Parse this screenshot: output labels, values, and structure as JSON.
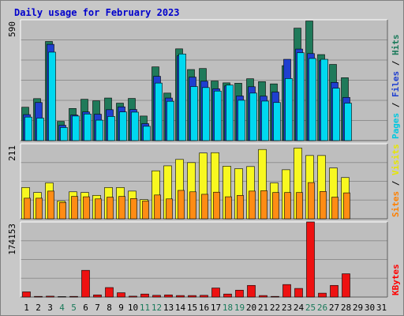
{
  "title": "Daily usage for February 2023",
  "panels": {
    "top": {
      "max_label": "590",
      "legend": [
        {
          "text": "Pages",
          "color": "#00c8e0"
        },
        {
          "text": " / ",
          "color": "#000000"
        },
        {
          "text": "Files",
          "color": "#1f3fd0"
        },
        {
          "text": " / ",
          "color": "#000000"
        },
        {
          "text": "Hits",
          "color": "#1a7a5a"
        }
      ]
    },
    "mid": {
      "max_label": "211",
      "legend": [
        {
          "text": "Sites",
          "color": "#ff8000"
        },
        {
          "text": " / ",
          "color": "#000000"
        },
        {
          "text": "Visits",
          "color": "#e6e600"
        }
      ]
    },
    "bot": {
      "max_label": "174153",
      "legend": [
        {
          "text": "KBytes",
          "color": "#ff0000"
        }
      ]
    }
  },
  "colors": {
    "hits": "#1f7a5a",
    "files": "#1f3fd0",
    "pages": "#00d8f0",
    "visits": "#f8f820",
    "sites": "#ff8c14",
    "kbytes": "#ee1111",
    "weekday": "#000000",
    "weekend": "#1a7a5a",
    "grid": "#909090",
    "panel_bg": "#bebebe"
  },
  "chart_data": {
    "type": "bar",
    "title": "Daily usage for February 2023",
    "categories": [
      "1",
      "2",
      "3",
      "4",
      "5",
      "6",
      "7",
      "8",
      "9",
      "10",
      "11",
      "12",
      "13",
      "14",
      "15",
      "16",
      "17",
      "18",
      "19",
      "20",
      "21",
      "22",
      "23",
      "24",
      "25",
      "26",
      "27",
      "28",
      "29",
      "30",
      "31"
    ],
    "weekend_days": [
      4,
      5,
      11,
      12,
      18,
      19,
      25,
      26
    ],
    "panels": [
      {
        "name": "top",
        "ylim": [
          0,
          590
        ],
        "series": [
          {
            "name": "Hits",
            "values": [
              163,
              205,
              484,
              94,
              157,
              202,
              194,
              208,
              183,
              206,
              120,
              360,
              232,
              448,
              347,
              352,
              291,
              282,
              280,
              302,
              288,
              277,
              366,
              549,
              584,
              420,
              372,
              307,
              0,
              0,
              0
            ]
          },
          {
            "name": "Files",
            "values": [
              127,
              186,
              470,
              75,
              125,
              140,
              129,
              151,
              165,
              152,
              83,
              314,
              208,
              414,
              310,
              290,
              253,
              267,
              218,
              263,
              217,
              237,
              397,
              447,
              425,
              390,
              284,
              211,
              0,
              0,
              0
            ]
          },
          {
            "name": "Pages",
            "values": [
              115,
              110,
              432,
              64,
              120,
              130,
              100,
              118,
              140,
              139,
              70,
              281,
              192,
              423,
              264,
              259,
              242,
              271,
              197,
              232,
              193,
              186,
              303,
              429,
              401,
              397,
              256,
              183,
              0,
              0,
              0
            ]
          }
        ]
      },
      {
        "name": "mid",
        "ylim": [
          0,
          211
        ],
        "series": [
          {
            "name": "Visits",
            "values": [
              88,
              74,
              101,
              50,
              76,
              74,
              66,
              88,
              88,
              78,
              54,
              135,
              149,
              167,
              158,
              185,
              186,
              148,
              141,
              147,
              195,
              101,
              138,
              199,
              178,
              178,
              143,
              116,
              0,
              0,
              0
            ]
          },
          {
            "name": "Sites",
            "values": [
              58,
              58,
              78,
              46,
              63,
              62,
              56,
              61,
              63,
              57,
              50,
              67,
              56,
              80,
              76,
              69,
              75,
              62,
              66,
              78,
              79,
              74,
              74,
              74,
              102,
              77,
              61,
              73,
              0,
              0,
              0
            ]
          }
        ]
      },
      {
        "name": "bot",
        "ylim": [
          0,
          174153
        ],
        "series": [
          {
            "name": "KBytes",
            "values": [
              12000,
              1500,
              2000,
              1000,
              1500,
              62000,
              5000,
              22000,
              10000,
              2000,
              7000,
              4000,
              5000,
              3500,
              3500,
              4000,
              21000,
              7000,
              16000,
              27000,
              3500,
              1500,
              29000,
              20000,
              174153,
              9000,
              27000,
              54000,
              0,
              0,
              0
            ]
          }
        ]
      }
    ]
  }
}
